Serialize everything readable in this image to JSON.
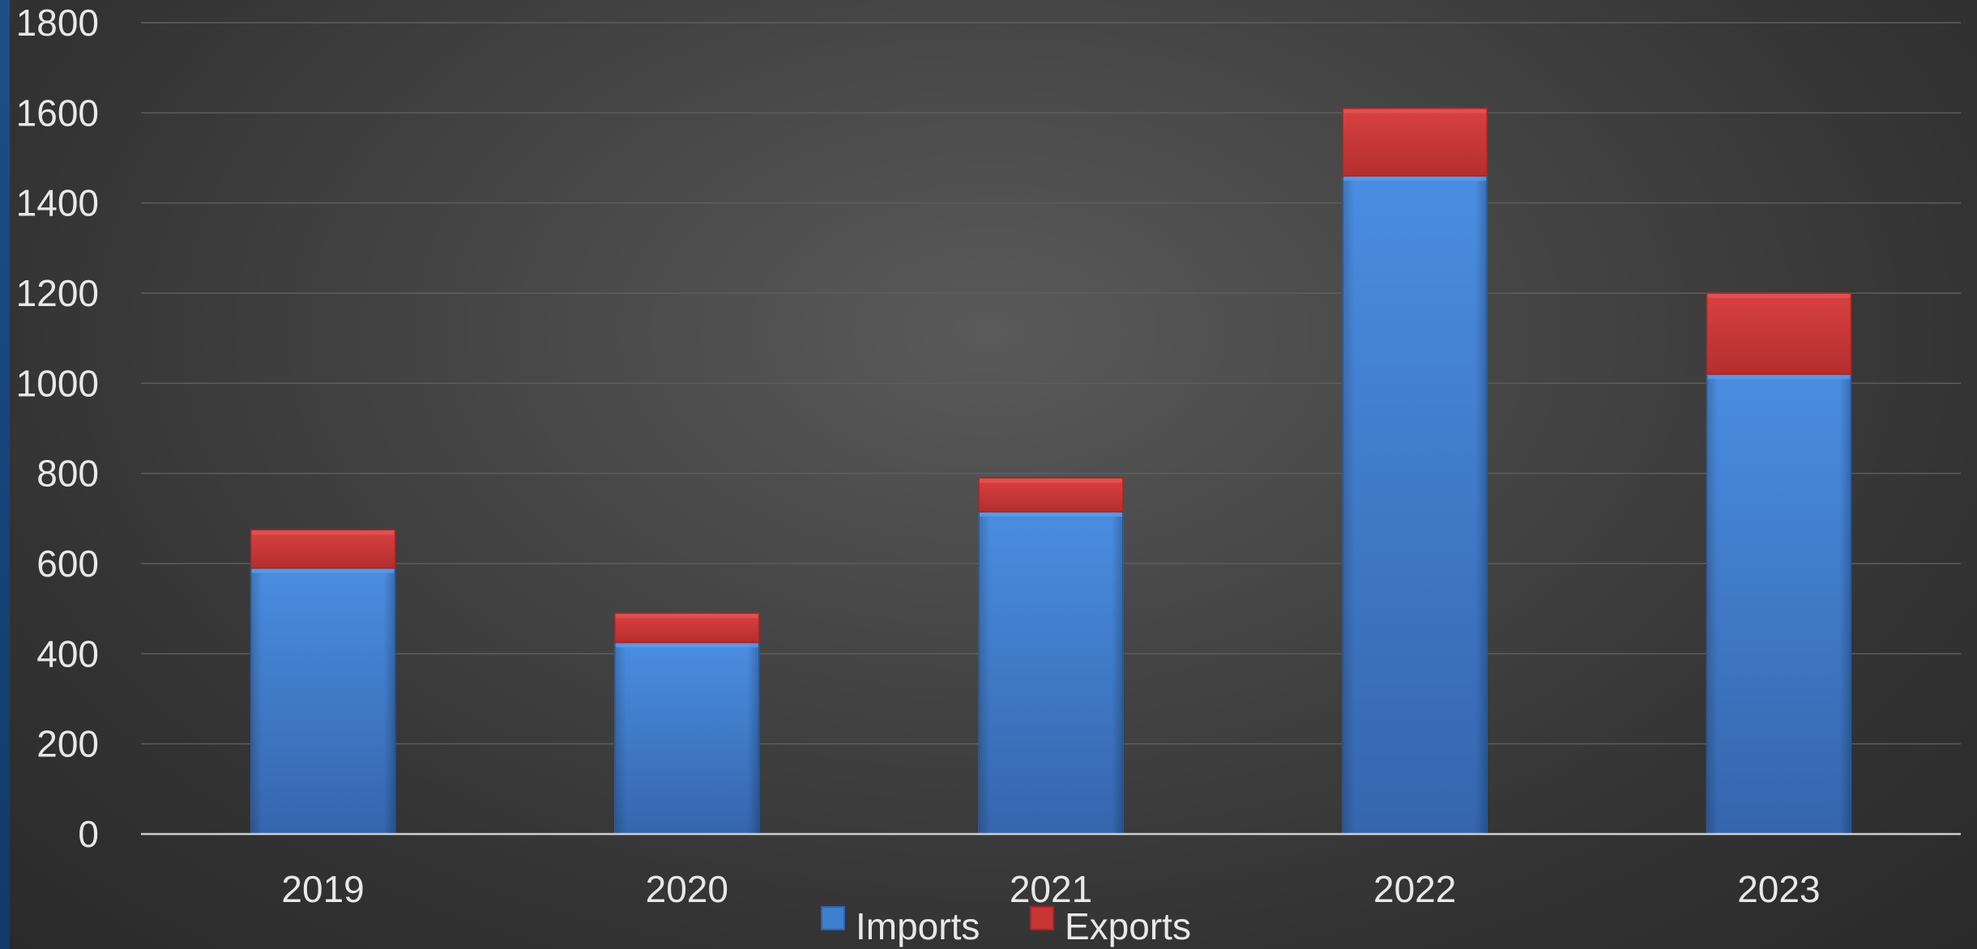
{
  "chart_data": {
    "type": "bar",
    "stacked": true,
    "categories": [
      "2019",
      "2020",
      "2021",
      "2022",
      "2023"
    ],
    "series": [
      {
        "name": "Imports",
        "values": [
          590,
          425,
          715,
          1460,
          1020
        ]
      },
      {
        "name": "Exports",
        "values": [
          85,
          65,
          75,
          150,
          180
        ]
      }
    ],
    "ylim": [
      0,
      1800
    ],
    "yticks": [
      0,
      200,
      400,
      600,
      800,
      1000,
      1200,
      1400,
      1600,
      1800
    ],
    "grid": true,
    "legend": "bottom",
    "colors": {
      "imports": "#3f7fd0",
      "imports_dark": "#2f63a8",
      "imports_light": "#5b9ae6",
      "exports": "#c93434",
      "exports_dark": "#a82626",
      "exports_light": "#e05555",
      "grid": "#5e5e5e",
      "axis": "#cfcfcf",
      "text": "#e8e8e8"
    }
  }
}
